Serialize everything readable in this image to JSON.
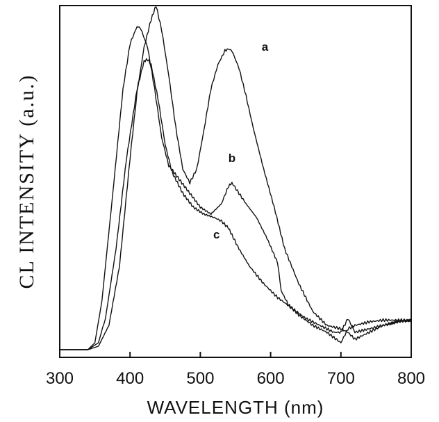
{
  "chart_data": {
    "type": "line",
    "title": "",
    "xlabel": "WAVELENGTH  (nm)",
    "ylabel": "CL  INTENSITY  (a.u.)",
    "xlim": [
      300,
      800
    ],
    "ylim": [
      0,
      1
    ],
    "xticks": [
      "300",
      "400",
      "500",
      "600",
      "700",
      "800"
    ],
    "grid": false,
    "legend": "none",
    "series": [
      {
        "name": "a",
        "x": [
          300,
          340,
          355,
          370,
          385,
          400,
          410,
          420,
          430,
          437,
          445,
          455,
          465,
          475,
          485,
          495,
          505,
          515,
          525,
          535,
          540,
          545,
          555,
          565,
          575,
          590,
          605,
          620,
          640,
          660,
          680,
          700,
          710,
          720,
          740,
          760,
          780,
          800
        ],
        "y": [
          0.01,
          0.01,
          0.02,
          0.08,
          0.25,
          0.56,
          0.75,
          0.88,
          0.96,
          1.0,
          0.93,
          0.8,
          0.65,
          0.53,
          0.49,
          0.53,
          0.64,
          0.76,
          0.83,
          0.87,
          0.875,
          0.87,
          0.82,
          0.74,
          0.65,
          0.53,
          0.42,
          0.3,
          0.2,
          0.12,
          0.08,
          0.07,
          0.06,
          0.04,
          0.06,
          0.08,
          0.09,
          0.095
        ]
      },
      {
        "name": "b",
        "x": [
          300,
          340,
          350,
          360,
          375,
          390,
          400,
          410,
          415,
          425,
          435,
          445,
          455,
          470,
          485,
          500,
          515,
          530,
          540,
          545,
          555,
          565,
          580,
          595,
          610,
          615,
          625,
          640,
          660,
          680,
          700,
          710,
          720,
          740,
          760,
          780,
          800
        ],
        "y": [
          0.01,
          0.01,
          0.03,
          0.15,
          0.45,
          0.76,
          0.89,
          0.94,
          0.935,
          0.88,
          0.76,
          0.62,
          0.54,
          0.5,
          0.46,
          0.42,
          0.4,
          0.43,
          0.48,
          0.49,
          0.46,
          0.43,
          0.39,
          0.33,
          0.26,
          0.18,
          0.14,
          0.11,
          0.08,
          0.06,
          0.03,
          0.07,
          0.08,
          0.09,
          0.095,
          0.095,
          0.095
        ]
      },
      {
        "name": "c",
        "x": [
          300,
          340,
          355,
          365,
          380,
          395,
          410,
          420,
          425,
          430,
          440,
          450,
          460,
          475,
          490,
          505,
          520,
          530,
          540,
          545,
          555,
          570,
          590,
          610,
          630,
          650,
          670,
          690,
          700,
          710,
          720,
          740,
          760,
          780,
          800
        ],
        "y": [
          0.01,
          0.01,
          0.03,
          0.1,
          0.3,
          0.56,
          0.76,
          0.84,
          0.845,
          0.83,
          0.73,
          0.6,
          0.52,
          0.46,
          0.42,
          0.4,
          0.39,
          0.38,
          0.36,
          0.34,
          0.3,
          0.25,
          0.2,
          0.16,
          0.13,
          0.1,
          0.08,
          0.06,
          0.06,
          0.1,
          0.06,
          0.07,
          0.08,
          0.09,
          0.095
        ]
      }
    ],
    "annotations": [
      {
        "text": "a",
        "x": 592,
        "y": 0.87
      },
      {
        "text": "b",
        "x": 545,
        "y": 0.55
      },
      {
        "text": "c",
        "x": 523,
        "y": 0.33
      }
    ]
  }
}
